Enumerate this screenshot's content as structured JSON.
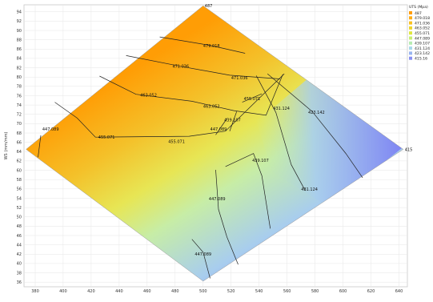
{
  "chart_data": {
    "type": "heatmap",
    "subtype": "filled-contour",
    "colors": {
      "low": "#7f86f3",
      "high": "#ff9d05"
    },
    "ylabel": "WS (mm/mm)",
    "xlabel": "",
    "x_ticks": [
      380,
      400,
      420,
      440,
      460,
      480,
      500,
      520,
      540,
      560,
      580,
      600,
      620,
      640
    ],
    "y_ticks": [
      36,
      38,
      40,
      42,
      44,
      46,
      48,
      50,
      52,
      54,
      56,
      58,
      60,
      62,
      64,
      66,
      68,
      70,
      72,
      74,
      76,
      78,
      80,
      82,
      84,
      86,
      88,
      90,
      92,
      94
    ],
    "xlim": [
      372,
      646
    ],
    "ylim": [
      35,
      95.5
    ],
    "grid": true,
    "region_vertices": [
      {
        "x": 500,
        "y": 36.2,
        "label": ""
      },
      {
        "x": 373.5,
        "y": 64.5,
        "label": ""
      },
      {
        "x": 500,
        "y": 95.3,
        "label": "487"
      },
      {
        "x": 643,
        "y": 64.5,
        "label": "415"
      }
    ],
    "legend": {
      "title": "UTS (Mpa)",
      "position": "top-right",
      "entries": [
        "487",
        "479.018",
        "471.036",
        "463.052",
        "455.071",
        "447.089",
        "439.107",
        "431.124",
        "423.142",
        "415.16"
      ],
      "colors": [
        "#ff9d05",
        "#ffad14",
        "#f9c021",
        "#eed52c",
        "#e0e63d",
        "#c9ee70",
        "#b6ecb1",
        "#a8d9ea",
        "#98b5f0",
        "#8890f2"
      ]
    },
    "contours": [
      {
        "label": "479.018",
        "points": [
          [
            469,
            88.6
          ],
          [
            505,
            86.8
          ],
          [
            530,
            85.1
          ]
        ],
        "label_at": [
          506,
          86.7
        ]
      },
      {
        "label": "471.036",
        "points": [
          [
            445,
            84.6
          ],
          [
            484,
            82.3
          ],
          [
            519,
            80.4
          ],
          [
            555,
            79.6
          ]
        ],
        "label_at": [
          484,
          82.3
        ]
      },
      {
        "label": "471.036",
        "points": [],
        "label_at": [
          526,
          79.8
        ]
      },
      {
        "label": "463.052",
        "points": [
          [
            426,
            80.2
          ],
          [
            452,
            76.3
          ],
          [
            492,
            74.8
          ],
          [
            522,
            72.8
          ],
          [
            545,
            71.8
          ],
          [
            557,
            80.6
          ]
        ],
        "label_at": [
          461,
          76.1
        ]
      },
      {
        "label": "463.052",
        "points": [],
        "label_at": [
          506,
          73.7
        ]
      },
      {
        "label": "455.071",
        "points": [
          [
            394,
            74.6
          ],
          [
            410,
            71.2
          ],
          [
            423,
            67.1
          ],
          [
            490,
            67.3
          ],
          [
            516,
            68.4
          ],
          [
            558,
            80.7
          ]
        ],
        "label_at": [
          431,
          67.1
        ]
      },
      {
        "label": "455.071",
        "points": [],
        "label_at": [
          481,
          66.1
        ]
      },
      {
        "label": "447.089",
        "points": [
          [
            384,
            67.5
          ],
          [
            382,
            62.8
          ]
        ],
        "label_at": [
          391,
          68.8
        ]
      },
      {
        "label": "447.089",
        "points": [
          [
            509,
            60.1
          ],
          [
            511,
            51.6
          ],
          [
            517,
            45.7
          ],
          [
            525,
            39.8
          ]
        ],
        "label_at": [
          510,
          53.8
        ]
      },
      {
        "label": "447.089",
        "points": [
          [
            492,
            45.2
          ],
          [
            500,
            42.4
          ],
          [
            505,
            36.8
          ]
        ],
        "label_at": [
          500,
          42.0
        ]
      },
      {
        "label": "439.107",
        "points": [
          [
            516,
            60.8
          ],
          [
            536,
            63.6
          ],
          [
            542,
            58.8
          ],
          [
            548,
            47.5
          ]
        ],
        "label_at": [
          541,
          62.1
        ]
      },
      {
        "label": "431.124",
        "points": [
          [
            538,
            80.3
          ],
          [
            552,
            72.4
          ],
          [
            563,
            61.2
          ],
          [
            573,
            55.6
          ]
        ],
        "label_at": [
          556,
          73.3
        ]
      },
      {
        "label": "431.124",
        "points": [],
        "label_at": [
          576,
          55.9
        ]
      },
      {
        "label": "423.142",
        "points": [
          [
            546,
            80.7
          ],
          [
            578,
            72.6
          ],
          [
            602,
            63.6
          ],
          [
            614,
            58.4
          ]
        ],
        "label_at": [
          581,
          72.4
        ]
      },
      {
        "label": "447.089",
        "points": [
          [
            509,
            67.6
          ],
          [
            517,
            71.1
          ]
        ],
        "label_at": [
          511,
          68.8
        ]
      },
      {
        "label": "439.107",
        "points": [
          [
            519,
            68.4
          ],
          [
            524,
            72.6
          ]
        ],
        "label_at": [
          521,
          70.8
        ]
      },
      {
        "label": "455.071",
        "points": [
          [
            528,
            74.6
          ],
          [
            542,
            76.4
          ]
        ],
        "label_at": [
          535,
          75.3
        ]
      }
    ]
  }
}
